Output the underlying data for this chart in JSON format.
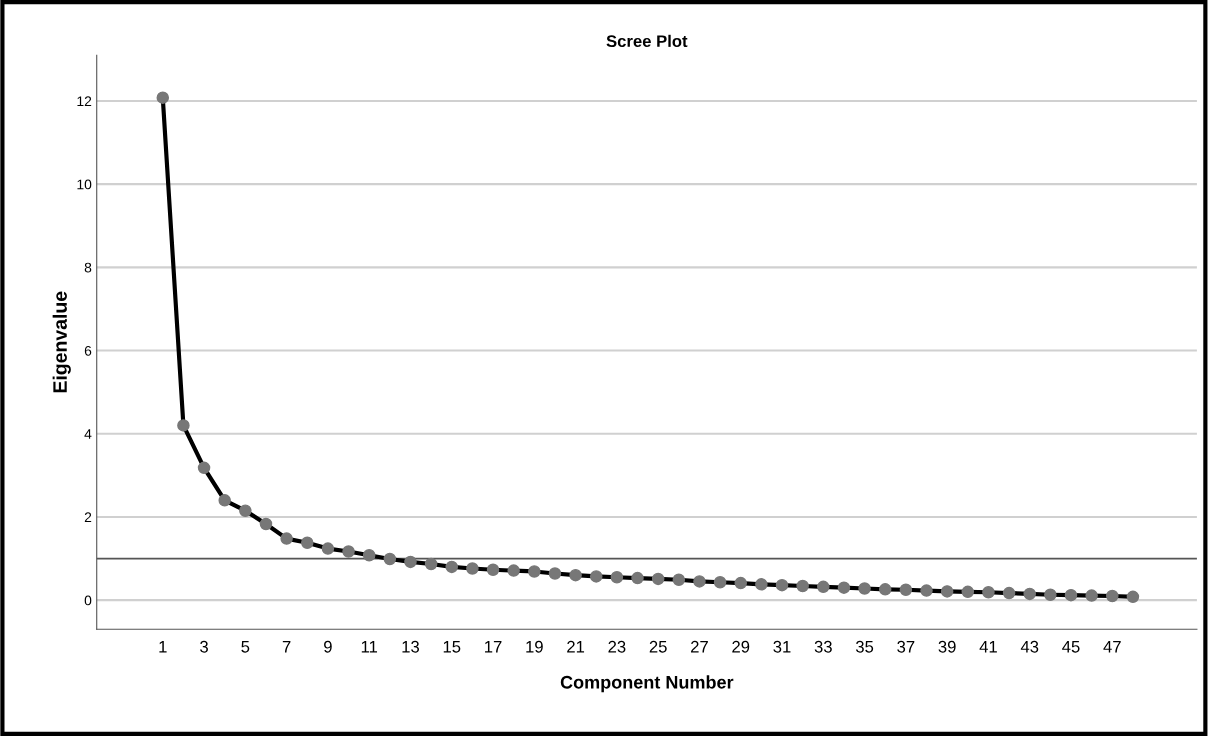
{
  "chart_data": {
    "type": "line",
    "title": "Scree Plot",
    "xlabel": "Component Number",
    "ylabel": "Eigenvalue",
    "categories": [
      "1",
      null,
      "3",
      null,
      "5",
      null,
      "7",
      null,
      "9",
      null,
      "11",
      null,
      "13",
      null,
      "15",
      null,
      "17",
      null,
      "19",
      null,
      "21",
      null,
      "23",
      null,
      "25",
      null,
      "27",
      null,
      "29",
      null,
      "31",
      null,
      "33",
      null,
      "35",
      null,
      "37",
      null,
      "39",
      null,
      "41",
      null,
      "43",
      null,
      "45",
      null,
      "47",
      null
    ],
    "series": [
      {
        "color": "#000000",
        "values": [
          12.08,
          4.2,
          3.18,
          2.4,
          2.15,
          1.83,
          1.48,
          1.38,
          1.24,
          1.17,
          1.08,
          0.99,
          0.92,
          0.87,
          0.8,
          0.76,
          0.73,
          0.71,
          0.69,
          0.64,
          0.6,
          0.57,
          0.55,
          0.53,
          0.51,
          0.49,
          0.45,
          0.43,
          0.41,
          0.38,
          0.36,
          0.34,
          0.32,
          0.3,
          0.28,
          0.26,
          0.25,
          0.23,
          0.21,
          0.2,
          0.19,
          0.17,
          0.15,
          0.13,
          0.12,
          0.11,
          0.1,
          0.08
        ]
      }
    ],
    "marker": "circle",
    "line_style": "solid",
    "ylim": [
      -0.7,
      13.1
    ],
    "yticks": [
      0,
      2,
      4,
      6,
      8,
      10,
      12
    ],
    "grid": "y",
    "legend": false,
    "ref_lines": [
      {
        "axis": "y",
        "value": 1,
        "color": "#555555"
      }
    ]
  }
}
